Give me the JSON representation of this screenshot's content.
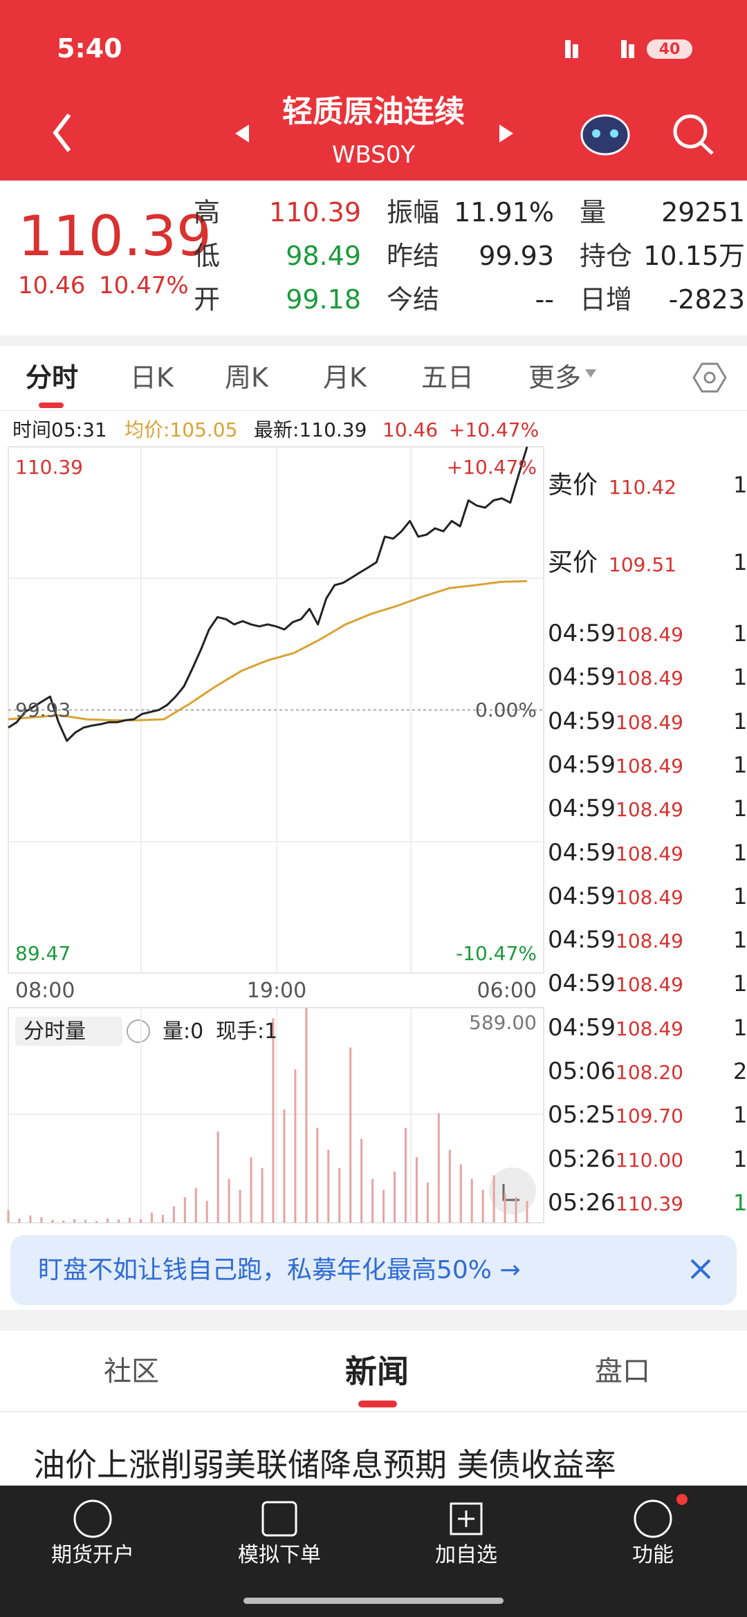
{
  "status_bar": {
    "time": "5:40",
    "battery": "40"
  },
  "header": {
    "title": "轻质原油连续",
    "code": "WBS0Y"
  },
  "quote": {
    "price": "110.39",
    "change": "10.46",
    "change_pct": "10.47%",
    "stats": [
      [
        {
          "label": "高",
          "value": "110.39"
        },
        {
          "label": "振幅",
          "value": "11.91%"
        },
        {
          "label": "量",
          "value": "29251"
        }
      ],
      [
        {
          "label": "低",
          "value": "98.49"
        },
        {
          "label": "昨结",
          "value": "99.93"
        },
        {
          "label": "持仓",
          "value": "10.15万"
        }
      ],
      [
        {
          "label": "开",
          "value": "99.18"
        },
        {
          "label": "今结",
          "value": "--"
        },
        {
          "label": "日增",
          "value": "-2823"
        }
      ]
    ]
  },
  "tabs": [
    "分时",
    "日K",
    "周K",
    "月K",
    "五日",
    "更多"
  ],
  "info": {
    "time_label": "时间05:31",
    "avg": "均价:105.05",
    "latest": "最新:110.39",
    "change": "10.46",
    "change_pct": "+10.47%"
  },
  "chart": {
    "ylim": [
      89.47,
      110.39
    ],
    "left_ticks": [
      110.39,
      99.93,
      89.47
    ],
    "right_ticks": [
      {
        "value": 110.39,
        "label": "+10.47%"
      },
      {
        "value": 99.93,
        "label": "0.00%"
      },
      {
        "value": 89.47,
        "label": "-10.47%"
      }
    ],
    "x_labels": [
      "08:00",
      "19:00",
      "06:00"
    ],
    "price": {
      "color": "#222222",
      "values": [
        99.23,
        99.44,
        99.85,
        100.05,
        100.26,
        100.46,
        99.44,
        98.7,
        99.03,
        99.23,
        99.31,
        99.36,
        99.44,
        99.44,
        99.52,
        99.56,
        99.77,
        99.85,
        99.93,
        100.13,
        100.46,
        100.87,
        101.57,
        102.31,
        103.13,
        103.62,
        103.54,
        103.33,
        103.46,
        103.33,
        103.25,
        103.33,
        103.25,
        103.13,
        103.42,
        103.54,
        103.95,
        103.33,
        104.36,
        104.89,
        104.98,
        105.18,
        105.39,
        105.59,
        105.8,
        106.82,
        106.74,
        107.03,
        107.44,
        106.82,
        106.9,
        107.15,
        107.03,
        107.44,
        107.23,
        108.26,
        108.05,
        107.97,
        108.26,
        108.34,
        108.17,
        109.28,
        110.39
      ]
    },
    "avg": {
      "color": "#d9a233",
      "values": [
        99.56,
        99.64,
        99.72,
        99.56,
        99.52,
        99.52,
        99.56,
        100.18,
        100.87,
        101.49,
        101.9,
        102.19,
        102.72,
        103.33,
        103.75,
        104.07,
        104.44,
        104.77,
        104.89,
        105.02,
        105.05
      ]
    },
    "volume": {
      "color": "#e7a3a3",
      "ylim": [
        0,
        589
      ],
      "max_tick": {
        "value": 589,
        "label": "589.00"
      },
      "values": [
        35,
        12,
        20,
        15,
        8,
        6,
        10,
        8,
        5,
        12,
        9,
        14,
        10,
        28,
        22,
        45,
        70,
        95,
        60,
        250,
        120,
        90,
        180,
        150,
        560,
        310,
        420,
        589,
        260,
        200,
        150,
        480,
        230,
        120,
        90,
        140,
        260,
        180,
        110,
        300,
        200,
        160,
        120,
        90,
        130,
        80,
        70,
        60
      ]
    },
    "volume_info": {
      "selector": "分时量",
      "amount": "量:0",
      "hand": "现手:1"
    }
  },
  "order_book": [
    {
      "label": "卖价",
      "price": "110.42",
      "qty": "1"
    },
    {
      "label": "买价",
      "price": "109.51",
      "qty": "1"
    }
  ],
  "trades": [
    {
      "time": "04:59",
      "price": "108.49",
      "qty": "1"
    },
    {
      "time": "04:59",
      "price": "108.49",
      "qty": "1"
    },
    {
      "time": "04:59",
      "price": "108.49",
      "qty": "1"
    },
    {
      "time": "04:59",
      "price": "108.49",
      "qty": "1"
    },
    {
      "time": "04:59",
      "price": "108.49",
      "qty": "1"
    },
    {
      "time": "04:59",
      "price": "108.49",
      "qty": "1"
    },
    {
      "time": "04:59",
      "price": "108.49",
      "qty": "1"
    },
    {
      "time": "04:59",
      "price": "108.49",
      "qty": "1"
    },
    {
      "time": "04:59",
      "price": "108.49",
      "qty": "1"
    },
    {
      "time": "04:59",
      "price": "108.49",
      "qty": "1"
    },
    {
      "time": "05:06",
      "price": "108.20",
      "qty": "2"
    },
    {
      "time": "05:25",
      "price": "109.70",
      "qty": "1"
    },
    {
      "time": "05:26",
      "price": "110.00",
      "qty": "1"
    },
    {
      "time": "05:26",
      "price": "110.39",
      "qty": "1"
    }
  ],
  "banner": {
    "text": "盯盘不如让钱自己跑，私募年化最高50% →"
  },
  "section_tabs": [
    "社区",
    "新闻",
    "盘口"
  ],
  "headline": "油价上涨削弱美联储降息预期 美债收益率",
  "bottom_nav": [
    "期货开户",
    "模拟下单",
    "加自选",
    "功能"
  ]
}
